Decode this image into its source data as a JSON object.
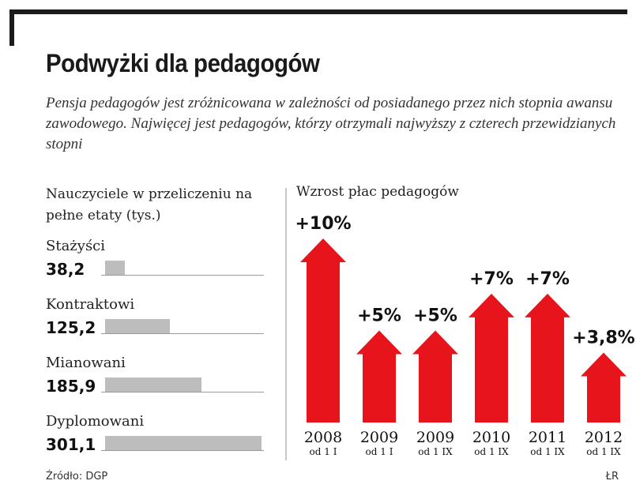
{
  "title": "Podwyżki dla pedagogów",
  "subtitle": "Pensja pedagogów jest zróżnicowana w zależności od posiadanego przez nich stopnia awansu zawodowego. Najwięcej jest pedagogów, którzy otrzymali najwyższy z czterech przewidzianych stopni",
  "colors": {
    "arrow": "#e8141b",
    "bar": "#bdbdbd",
    "text": "#1a1a1a"
  },
  "chart_data": [
    {
      "type": "bar",
      "orientation": "horizontal",
      "title": "Nauczyciele w przeliczeniu na pełne etaty (tys.)",
      "categories": [
        "Stażyści",
        "Kontraktowi",
        "Mianowani",
        "Dyplomowani"
      ],
      "values": [
        38.2,
        125.2,
        185.9,
        301.1
      ],
      "value_labels": [
        "38,2",
        "125,2",
        "185,9",
        "301,1"
      ],
      "unit": "tys.",
      "xlim": [
        0,
        301.1
      ]
    },
    {
      "type": "bar",
      "title": "Wzrost płac pedagogów",
      "categories": [
        "2008",
        "2009",
        "2009",
        "2010",
        "2011",
        "2012"
      ],
      "subcategories": [
        "od 1 I",
        "od 1 I",
        "od 1 IX",
        "od 1 IX",
        "od 1 IX",
        "od 1 IX"
      ],
      "values": [
        10,
        5,
        5,
        7,
        7,
        3.8
      ],
      "value_labels": [
        "+10%",
        "+5%",
        "+5%",
        "+7%",
        "+7%",
        "+3,8%"
      ],
      "unit": "%",
      "ylim": [
        0,
        10
      ]
    }
  ],
  "footer": {
    "source": "Źródło: DGP",
    "credit": "ŁR"
  }
}
